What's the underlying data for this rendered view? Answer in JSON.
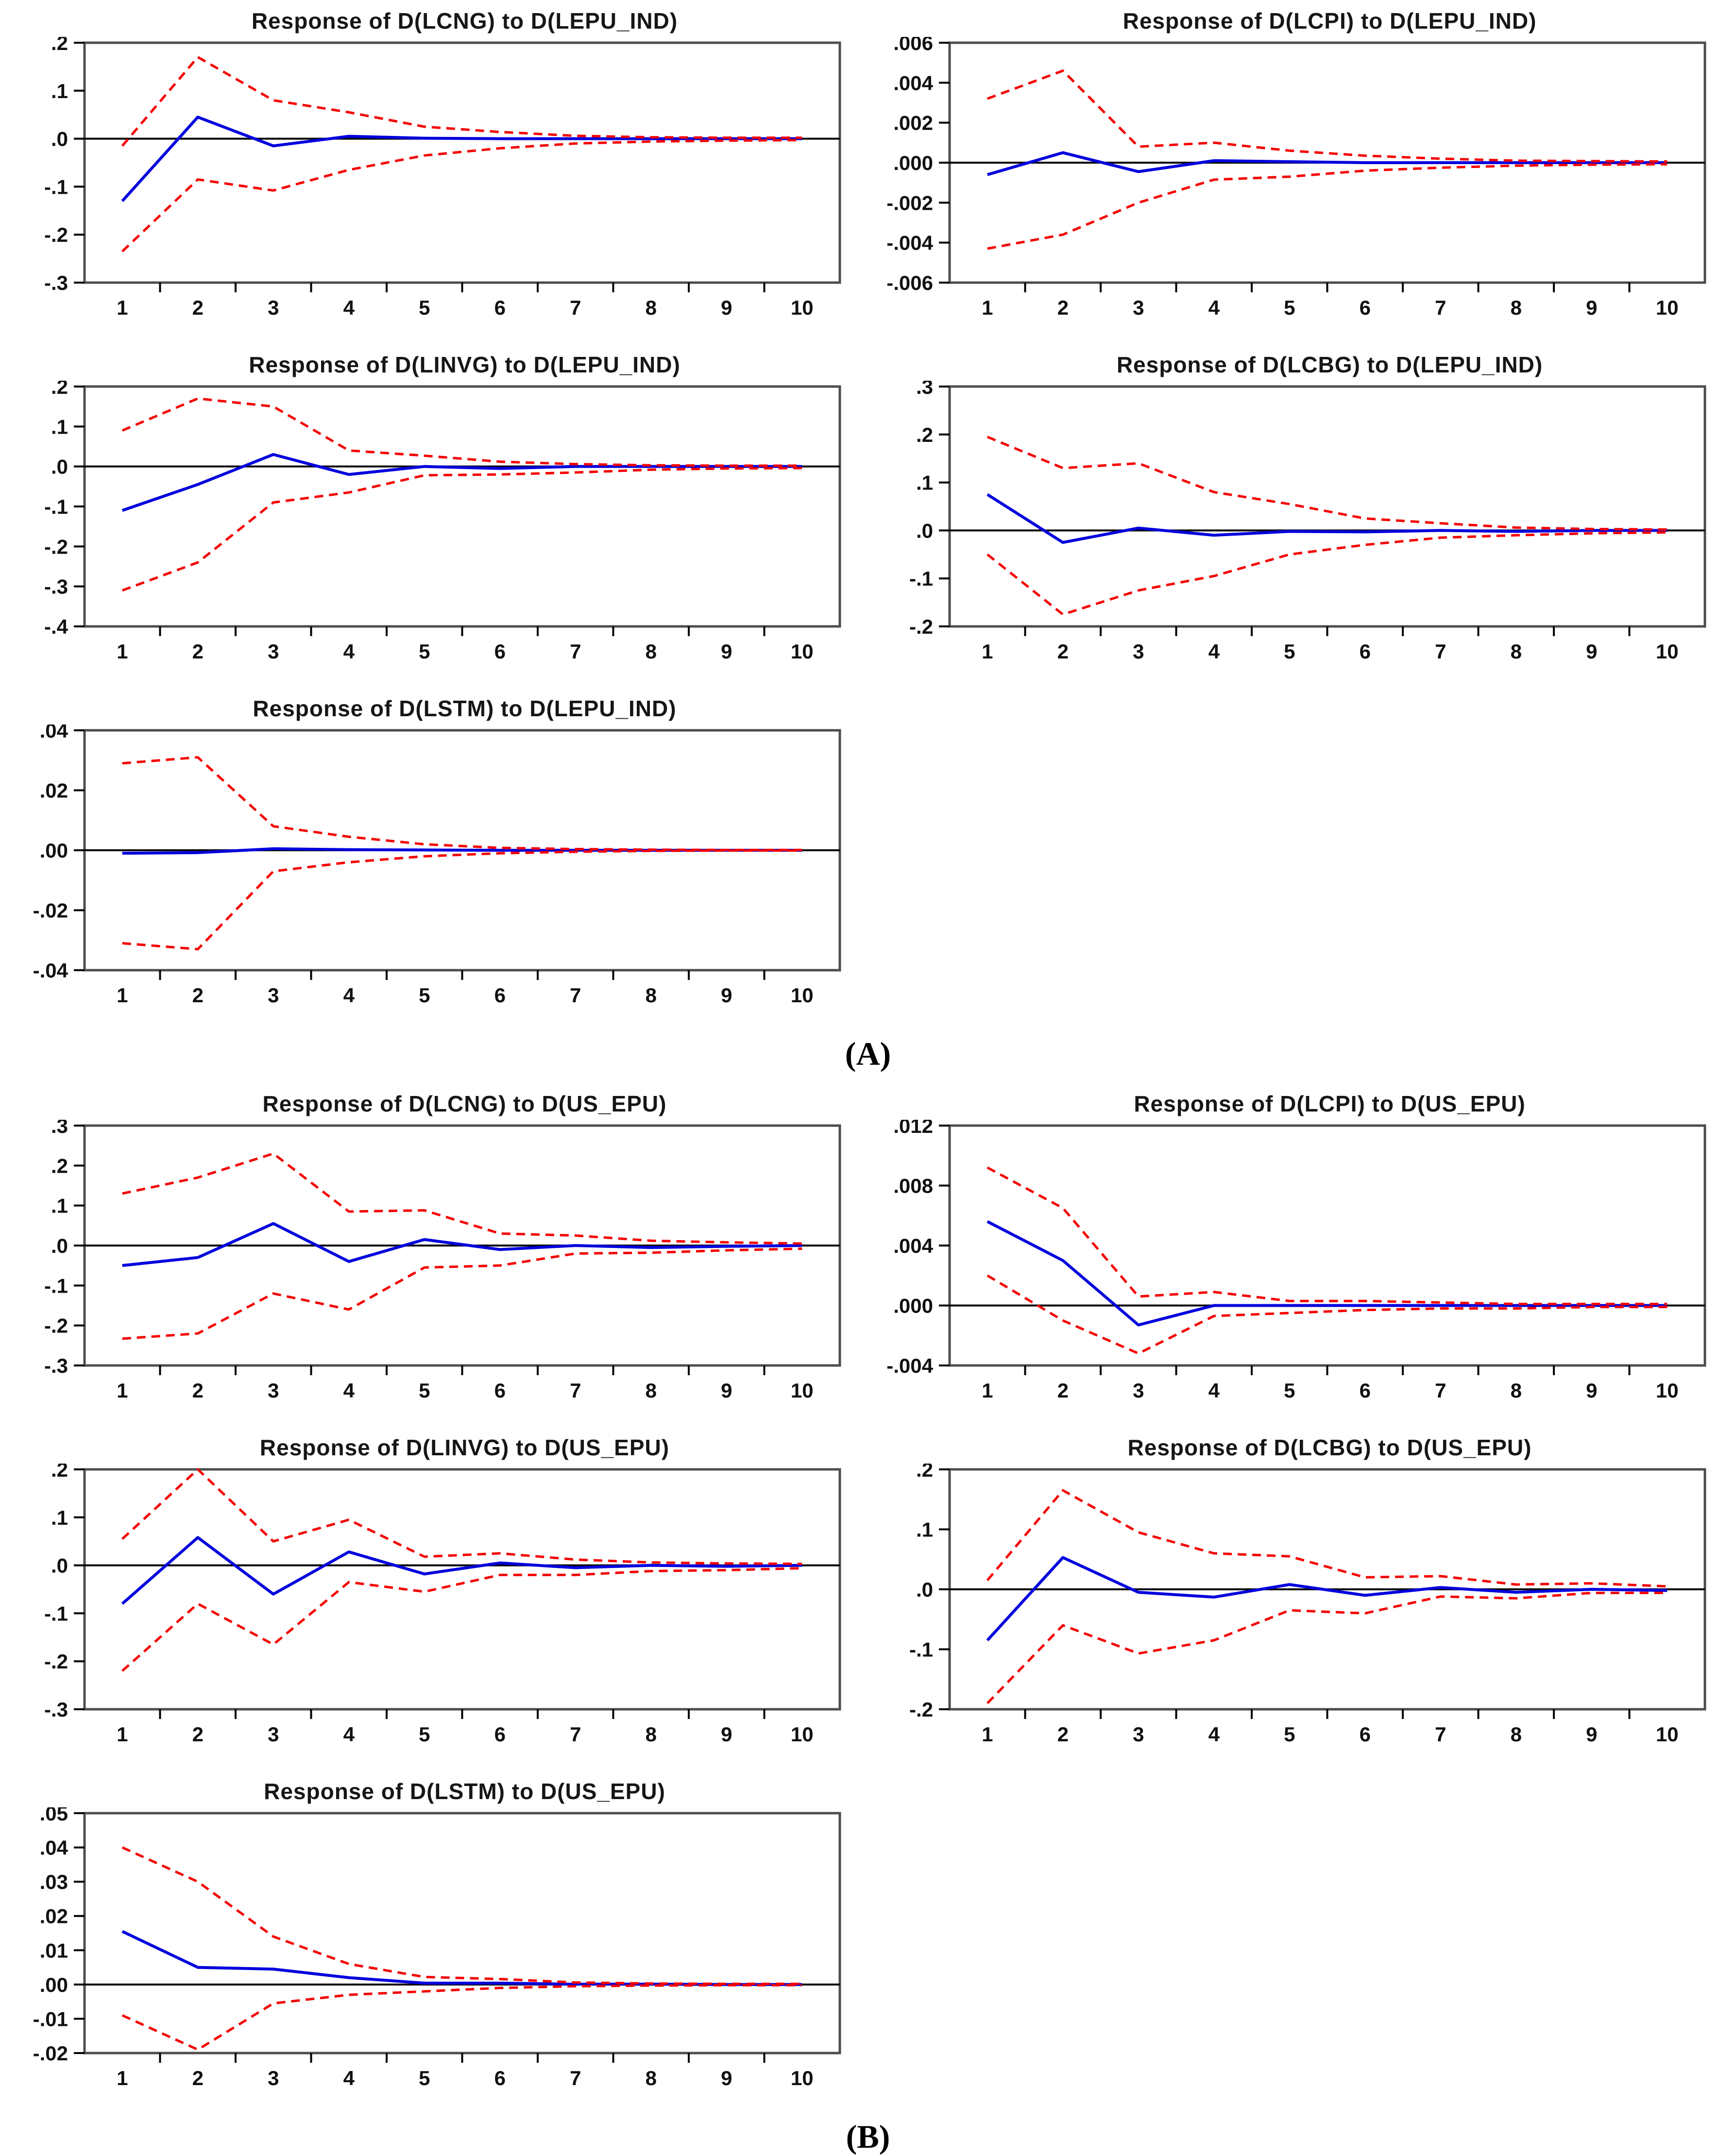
{
  "figure": {
    "panel_a_label": "(A)",
    "panel_b_label": "(B)",
    "colors": {
      "irf_line": "#0000dd",
      "band_line": "#f40000",
      "zero_line": "#000000",
      "box_border": "#4d4d4d",
      "tick": "#000000",
      "text": "#111111"
    }
  },
  "chart_data": [
    {
      "id": "lcng-lepu-ind",
      "panel": "A",
      "type": "line",
      "title": "Response of D(LCNG) to D(LEPU_IND)",
      "x": [
        1,
        2,
        3,
        4,
        5,
        6,
        7,
        8,
        9,
        10
      ],
      "x_ticklabels": [
        "1",
        "2",
        "3",
        "4",
        "5",
        "6",
        "7",
        "8",
        "9",
        "10"
      ],
      "ylim": [
        -0.3,
        0.2
      ],
      "yticks": [
        0.2,
        0.1,
        0.0,
        -0.1,
        -0.2,
        -0.3
      ],
      "ytick_labels": [
        ".2",
        ".1",
        ".0",
        "-.1",
        "-.2",
        "-.3"
      ],
      "grid": false,
      "legend": null,
      "series": [
        {
          "name": "irf",
          "style": "solid",
          "values": [
            -0.13,
            0.045,
            -0.015,
            0.005,
            0.001,
            0.0,
            0.0,
            0.0,
            0.0,
            0.0
          ]
        },
        {
          "name": "upper-band",
          "style": "dashed",
          "values": [
            -0.015,
            0.17,
            0.08,
            0.055,
            0.025,
            0.014,
            0.006,
            0.003,
            0.002,
            0.002
          ]
        },
        {
          "name": "lower-band",
          "style": "dashed",
          "values": [
            -0.235,
            -0.085,
            -0.108,
            -0.065,
            -0.035,
            -0.02,
            -0.01,
            -0.006,
            -0.004,
            -0.003
          ]
        }
      ]
    },
    {
      "id": "lcpi-lepu-ind",
      "panel": "A",
      "type": "line",
      "title": "Response of D(LCPI) to D(LEPU_IND)",
      "x": [
        1,
        2,
        3,
        4,
        5,
        6,
        7,
        8,
        9,
        10
      ],
      "x_ticklabels": [
        "1",
        "2",
        "3",
        "4",
        "5",
        "6",
        "7",
        "8",
        "9",
        "10"
      ],
      "ylim": [
        -0.006,
        0.006
      ],
      "yticks": [
        0.006,
        0.004,
        0.002,
        0.0,
        -0.002,
        -0.004,
        -0.006
      ],
      "ytick_labels": [
        ".006",
        ".004",
        ".002",
        ".000",
        "-.002",
        "-.004",
        "-.006"
      ],
      "grid": false,
      "legend": null,
      "series": [
        {
          "name": "irf",
          "style": "solid",
          "values": [
            -0.0006,
            0.0005,
            -0.00045,
            0.0001,
            5e-05,
            0,
            0,
            0,
            0,
            0
          ]
        },
        {
          "name": "upper-band",
          "style": "dashed",
          "values": [
            0.0032,
            0.0046,
            0.0008,
            0.001,
            0.0006,
            0.00035,
            0.0002,
            0.0001,
            8e-05,
            6e-05
          ]
        },
        {
          "name": "lower-band",
          "style": "dashed",
          "values": [
            -0.0043,
            -0.0036,
            -0.002,
            -0.00085,
            -0.0007,
            -0.0004,
            -0.00025,
            -0.00015,
            -0.0001,
            -8e-05
          ]
        }
      ]
    },
    {
      "id": "linvg-lepu-ind",
      "panel": "A",
      "type": "line",
      "title": "Response of D(LINVG) to D(LEPU_IND)",
      "x": [
        1,
        2,
        3,
        4,
        5,
        6,
        7,
        8,
        9,
        10
      ],
      "x_ticklabels": [
        "1",
        "2",
        "3",
        "4",
        "5",
        "6",
        "7",
        "8",
        "9",
        "10"
      ],
      "ylim": [
        -0.4,
        0.2
      ],
      "yticks": [
        0.2,
        0.1,
        0.0,
        -0.1,
        -0.2,
        -0.3,
        -0.4
      ],
      "ytick_labels": [
        ".2",
        ".1",
        ".0",
        "-.1",
        "-.2",
        "-.3",
        "-.4"
      ],
      "grid": false,
      "legend": null,
      "series": [
        {
          "name": "irf",
          "style": "solid",
          "values": [
            -0.11,
            -0.045,
            0.03,
            -0.02,
            0.0,
            -0.005,
            0.0,
            0.0,
            0.0,
            0.0
          ]
        },
        {
          "name": "upper-band",
          "style": "dashed",
          "values": [
            0.09,
            0.17,
            0.15,
            0.04,
            0.027,
            0.012,
            0.006,
            0.003,
            0.002,
            0.002
          ]
        },
        {
          "name": "lower-band",
          "style": "dashed",
          "values": [
            -0.31,
            -0.24,
            -0.09,
            -0.065,
            -0.022,
            -0.02,
            -0.015,
            -0.008,
            -0.005,
            -0.004
          ]
        }
      ]
    },
    {
      "id": "lcbg-lepu-ind",
      "panel": "A",
      "type": "line",
      "title": "Response of D(LCBG) to D(LEPU_IND)",
      "x": [
        1,
        2,
        3,
        4,
        5,
        6,
        7,
        8,
        9,
        10
      ],
      "x_ticklabels": [
        "1",
        "2",
        "3",
        "4",
        "5",
        "6",
        "7",
        "8",
        "9",
        "10"
      ],
      "ylim": [
        -0.2,
        0.3
      ],
      "yticks": [
        0.3,
        0.2,
        0.1,
        0.0,
        -0.1,
        -0.2
      ],
      "ytick_labels": [
        ".3",
        ".2",
        ".1",
        ".0",
        "-.1",
        "-.2"
      ],
      "grid": false,
      "legend": null,
      "series": [
        {
          "name": "irf",
          "style": "solid",
          "values": [
            0.075,
            -0.025,
            0.005,
            -0.01,
            -0.002,
            -0.003,
            0.0,
            -0.002,
            0.0,
            0.0
          ]
        },
        {
          "name": "upper-band",
          "style": "dashed",
          "values": [
            0.195,
            0.13,
            0.14,
            0.08,
            0.055,
            0.025,
            0.015,
            0.006,
            0.003,
            0.002
          ]
        },
        {
          "name": "lower-band",
          "style": "dashed",
          "values": [
            -0.05,
            -0.175,
            -0.125,
            -0.095,
            -0.05,
            -0.03,
            -0.015,
            -0.01,
            -0.006,
            -0.004
          ]
        }
      ]
    },
    {
      "id": "lstm-lepu-ind",
      "panel": "A",
      "type": "line",
      "title": "Response of D(LSTM) to D(LEPU_IND)",
      "x": [
        1,
        2,
        3,
        4,
        5,
        6,
        7,
        8,
        9,
        10
      ],
      "x_ticklabels": [
        "1",
        "2",
        "3",
        "4",
        "5",
        "6",
        "7",
        "8",
        "9",
        "10"
      ],
      "ylim": [
        -0.04,
        0.04
      ],
      "yticks": [
        0.04,
        0.02,
        0.0,
        -0.02,
        -0.04
      ],
      "ytick_labels": [
        ".04",
        ".02",
        ".00",
        "-.02",
        "-.04"
      ],
      "grid": false,
      "legend": null,
      "series": [
        {
          "name": "irf",
          "style": "solid",
          "values": [
            -0.001,
            -0.0008,
            0.0005,
            0.0002,
            0.0001,
            0,
            0,
            0,
            0,
            0
          ]
        },
        {
          "name": "upper-band",
          "style": "dashed",
          "values": [
            0.029,
            0.031,
            0.008,
            0.0045,
            0.002,
            0.0008,
            0.0004,
            0.0002,
            0.0001,
            0.0001
          ]
        },
        {
          "name": "lower-band",
          "style": "dashed",
          "values": [
            -0.031,
            -0.033,
            -0.007,
            -0.004,
            -0.002,
            -0.001,
            -0.0005,
            -0.0002,
            -0.0001,
            -0.0001
          ]
        }
      ]
    },
    {
      "id": "lcng-us-epu",
      "panel": "B",
      "type": "line",
      "title": "Response of D(LCNG) to D(US_EPU)",
      "x": [
        1,
        2,
        3,
        4,
        5,
        6,
        7,
        8,
        9,
        10
      ],
      "x_ticklabels": [
        "1",
        "2",
        "3",
        "4",
        "5",
        "6",
        "7",
        "8",
        "9",
        "10"
      ],
      "ylim": [
        -0.3,
        0.3
      ],
      "yticks": [
        0.3,
        0.2,
        0.1,
        0.0,
        -0.1,
        -0.2,
        -0.3
      ],
      "ytick_labels": [
        ".3",
        ".2",
        ".1",
        ".0",
        "-.1",
        "-.2",
        "-.3"
      ],
      "grid": false,
      "legend": null,
      "series": [
        {
          "name": "irf",
          "style": "solid",
          "values": [
            -0.05,
            -0.03,
            0.055,
            -0.04,
            0.015,
            -0.01,
            0.0,
            -0.005,
            -0.002,
            0.0
          ]
        },
        {
          "name": "upper-band",
          "style": "dashed",
          "values": [
            0.13,
            0.17,
            0.23,
            0.085,
            0.088,
            0.03,
            0.025,
            0.012,
            0.008,
            0.005
          ]
        },
        {
          "name": "lower-band",
          "style": "dashed",
          "values": [
            -0.233,
            -0.22,
            -0.12,
            -0.16,
            -0.055,
            -0.05,
            -0.02,
            -0.018,
            -0.012,
            -0.008
          ]
        }
      ]
    },
    {
      "id": "lcpi-us-epu",
      "panel": "B",
      "type": "line",
      "title": "Response of D(LCPI) to D(US_EPU)",
      "x": [
        1,
        2,
        3,
        4,
        5,
        6,
        7,
        8,
        9,
        10
      ],
      "x_ticklabels": [
        "1",
        "2",
        "3",
        "4",
        "5",
        "6",
        "7",
        "8",
        "9",
        "10"
      ],
      "ylim": [
        -0.004,
        0.012
      ],
      "yticks": [
        0.012,
        0.008,
        0.004,
        0.0,
        -0.004
      ],
      "ytick_labels": [
        ".012",
        ".008",
        ".004",
        ".000",
        "-.004"
      ],
      "grid": false,
      "legend": null,
      "series": [
        {
          "name": "irf",
          "style": "solid",
          "values": [
            0.0056,
            0.003,
            -0.0013,
            0.0,
            0.0,
            0,
            0,
            0,
            0,
            0
          ]
        },
        {
          "name": "upper-band",
          "style": "dashed",
          "values": [
            0.0092,
            0.0065,
            0.0006,
            0.0009,
            0.0003,
            0.0003,
            0.0002,
            0.0001,
            0.0001,
            0.0001
          ]
        },
        {
          "name": "lower-band",
          "style": "dashed",
          "values": [
            0.002,
            -0.001,
            -0.0032,
            -0.0007,
            -0.0005,
            -0.0003,
            -0.0002,
            -0.0002,
            -0.0001,
            -0.0001
          ]
        }
      ]
    },
    {
      "id": "linvg-us-epu",
      "panel": "B",
      "type": "line",
      "title": "Response of D(LINVG) to D(US_EPU)",
      "x": [
        1,
        2,
        3,
        4,
        5,
        6,
        7,
        8,
        9,
        10
      ],
      "x_ticklabels": [
        "1",
        "2",
        "3",
        "4",
        "5",
        "6",
        "7",
        "8",
        "9",
        "10"
      ],
      "ylim": [
        -0.3,
        0.2
      ],
      "yticks": [
        0.2,
        0.1,
        0.0,
        -0.1,
        -0.2,
        -0.3
      ],
      "ytick_labels": [
        ".2",
        ".1",
        ".0",
        "-.1",
        "-.2",
        "-.3"
      ],
      "grid": false,
      "legend": null,
      "series": [
        {
          "name": "irf",
          "style": "solid",
          "values": [
            -0.08,
            0.058,
            -0.06,
            0.028,
            -0.018,
            0.005,
            -0.005,
            0.0,
            -0.002,
            0.0
          ]
        },
        {
          "name": "upper-band",
          "style": "dashed",
          "values": [
            0.055,
            0.2,
            0.05,
            0.095,
            0.018,
            0.025,
            0.012,
            0.006,
            0.004,
            0.003
          ]
        },
        {
          "name": "lower-band",
          "style": "dashed",
          "values": [
            -0.22,
            -0.08,
            -0.165,
            -0.035,
            -0.055,
            -0.02,
            -0.02,
            -0.012,
            -0.01,
            -0.006
          ]
        }
      ]
    },
    {
      "id": "lcbg-us-epu",
      "panel": "B",
      "type": "line",
      "title": "Response of D(LCBG) to D(US_EPU)",
      "x": [
        1,
        2,
        3,
        4,
        5,
        6,
        7,
        8,
        9,
        10
      ],
      "x_ticklabels": [
        "1",
        "2",
        "3",
        "4",
        "5",
        "6",
        "7",
        "8",
        "9",
        "10"
      ],
      "ylim": [
        -0.2,
        0.2
      ],
      "yticks": [
        0.2,
        0.1,
        0.0,
        -0.1,
        -0.2
      ],
      "ytick_labels": [
        ".2",
        ".1",
        ".0",
        "-.1",
        "-.2"
      ],
      "grid": false,
      "legend": null,
      "series": [
        {
          "name": "irf",
          "style": "solid",
          "values": [
            -0.085,
            0.053,
            -0.005,
            -0.013,
            0.008,
            -0.01,
            0.003,
            -0.005,
            0.0,
            -0.002
          ]
        },
        {
          "name": "upper-band",
          "style": "dashed",
          "values": [
            0.015,
            0.165,
            0.095,
            0.06,
            0.055,
            0.02,
            0.022,
            0.008,
            0.01,
            0.005
          ]
        },
        {
          "name": "lower-band",
          "style": "dashed",
          "values": [
            -0.19,
            -0.06,
            -0.107,
            -0.085,
            -0.035,
            -0.04,
            -0.012,
            -0.015,
            -0.006,
            -0.006
          ]
        }
      ]
    },
    {
      "id": "lstm-us-epu",
      "panel": "B",
      "type": "line",
      "title": "Response of D(LSTM) to D(US_EPU)",
      "x": [
        1,
        2,
        3,
        4,
        5,
        6,
        7,
        8,
        9,
        10
      ],
      "x_ticklabels": [
        "1",
        "2",
        "3",
        "4",
        "5",
        "6",
        "7",
        "8",
        "9",
        "10"
      ],
      "ylim": [
        -0.02,
        0.05
      ],
      "yticks": [
        0.05,
        0.04,
        0.03,
        0.02,
        0.01,
        0.0,
        -0.01,
        -0.02
      ],
      "ytick_labels": [
        ".05",
        ".04",
        ".03",
        ".02",
        ".01",
        ".00",
        "-.01",
        "-.02"
      ],
      "grid": false,
      "legend": null,
      "series": [
        {
          "name": "irf",
          "style": "solid",
          "values": [
            0.0155,
            0.005,
            0.0045,
            0.002,
            0.0004,
            0.0004,
            0.0001,
            0.0001,
            0.0,
            0.0
          ]
        },
        {
          "name": "upper-band",
          "style": "dashed",
          "values": [
            0.04,
            0.03,
            0.014,
            0.006,
            0.0022,
            0.0016,
            0.0006,
            0.0003,
            0.0002,
            0.0002
          ]
        },
        {
          "name": "lower-band",
          "style": "dashed",
          "values": [
            -0.009,
            -0.019,
            -0.0055,
            -0.003,
            -0.002,
            -0.001,
            -0.0005,
            -0.0003,
            -0.0002,
            -0.0002
          ]
        }
      ]
    }
  ]
}
